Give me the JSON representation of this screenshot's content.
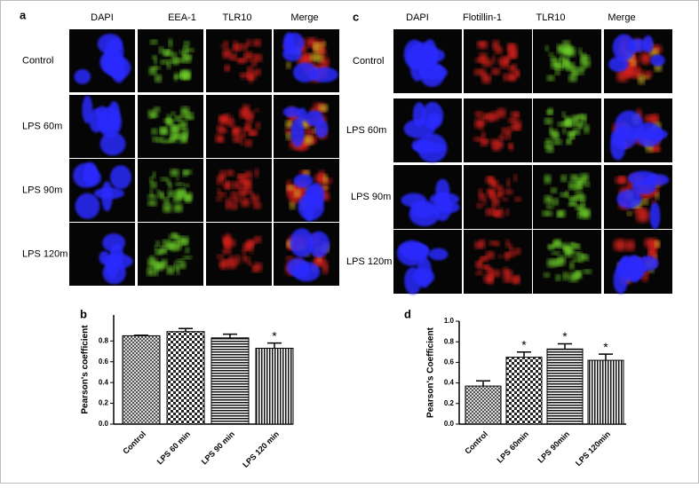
{
  "panel_a": {
    "label": "a",
    "columns": [
      "DAPI",
      "EEA-1",
      "TLR10",
      "Merge"
    ],
    "rows": [
      "Control",
      "LPS 60m",
      "LPS 90m",
      "LPS 120m"
    ]
  },
  "panel_c": {
    "label": "c",
    "columns": [
      "DAPI",
      "Flotillin-1",
      "TLR10",
      "Merge"
    ],
    "rows": [
      "Control",
      "LPS 60m",
      "LPS 90m",
      "LPS 120m"
    ]
  },
  "chart_data": [
    {
      "type": "bar",
      "label": "b",
      "y_label": "Pearson's coefficient",
      "categories": [
        "Control",
        "LPS 60 min",
        "LPS 90 min",
        "LPS 120 min"
      ],
      "values": [
        0.85,
        0.89,
        0.83,
        0.73
      ],
      "errors": [
        0.005,
        0.03,
        0.035,
        0.05
      ],
      "ylim": [
        0,
        1.05
      ],
      "yticks": [
        {
          "value": 0,
          "label": "0.0"
        },
        0.2,
        0.4,
        0.6,
        0.8
      ],
      "annotations": [
        {
          "text": "*",
          "at": 3
        }
      ]
    },
    {
      "type": "bar",
      "label": "d",
      "y_label": "Pearson's Coefficient",
      "categories": [
        "Control",
        "LPS 60min",
        "LPS 90min",
        "LPS 120min"
      ],
      "values": [
        0.37,
        0.65,
        0.73,
        0.62
      ],
      "errors": [
        0.05,
        0.05,
        0.05,
        0.06
      ],
      "ylim": [
        0,
        1
      ],
      "yticks": [
        {
          "value": 0,
          "label": "0.0"
        },
        0.2,
        0.4,
        0.6,
        0.8,
        {
          "value": 1,
          "label": "1.0"
        }
      ],
      "annotations": [
        {
          "text": "*",
          "at": 1
        },
        {
          "text": "*",
          "at": 2
        },
        {
          "text": "*",
          "at": 3
        }
      ]
    }
  ]
}
